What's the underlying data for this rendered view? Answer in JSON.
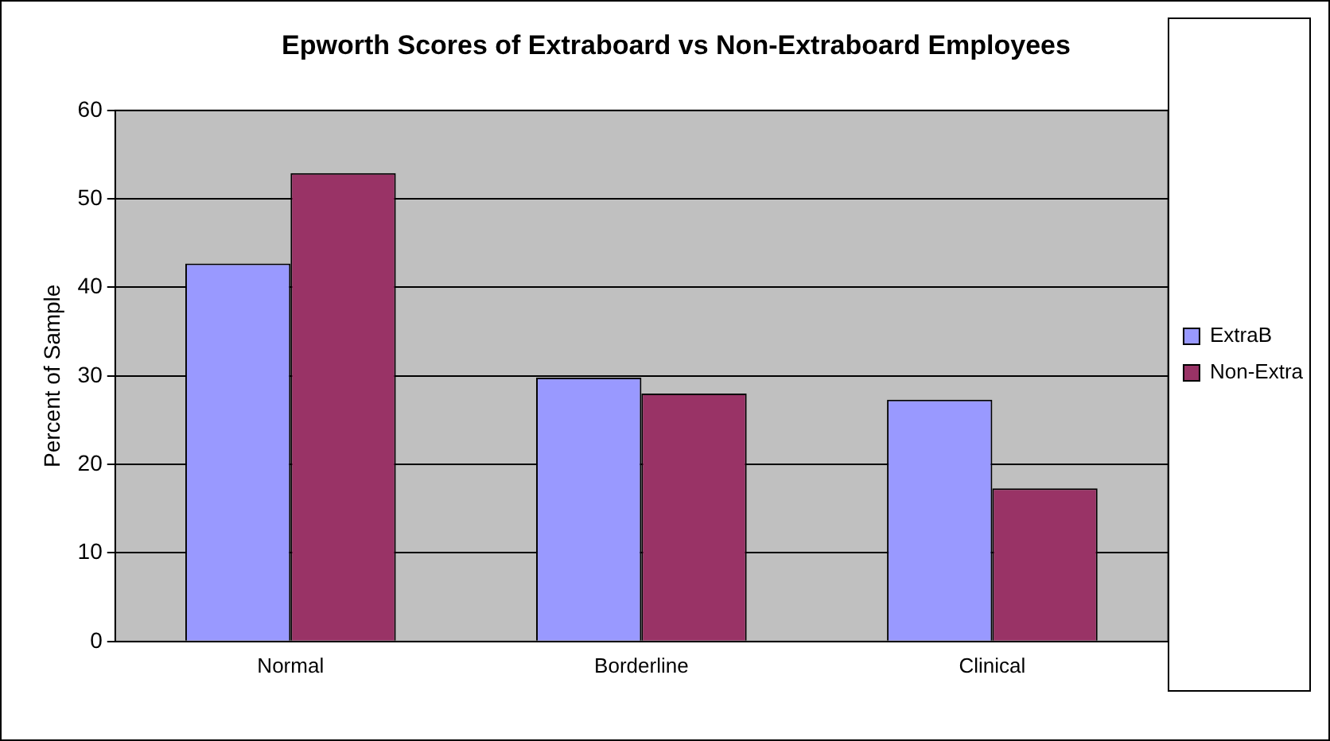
{
  "chart_data": {
    "type": "bar",
    "title": "Epworth Scores of Extraboard vs Non-Extraboard Employees",
    "ylabel": "Percent of Sample",
    "categories": [
      "Normal",
      "Borderline",
      "Clinical"
    ],
    "series": [
      {
        "name": "ExtraB",
        "color": "#9999ff",
        "values": [
          42.7,
          29.8,
          27.3
        ]
      },
      {
        "name": "Non-Extra",
        "color": "#993366",
        "values": [
          52.9,
          28.0,
          17.3
        ]
      }
    ],
    "ylim": [
      0,
      60
    ],
    "yticks": [
      0,
      10,
      20,
      30,
      40,
      50,
      60
    ],
    "grid": "y",
    "legend": "right"
  }
}
